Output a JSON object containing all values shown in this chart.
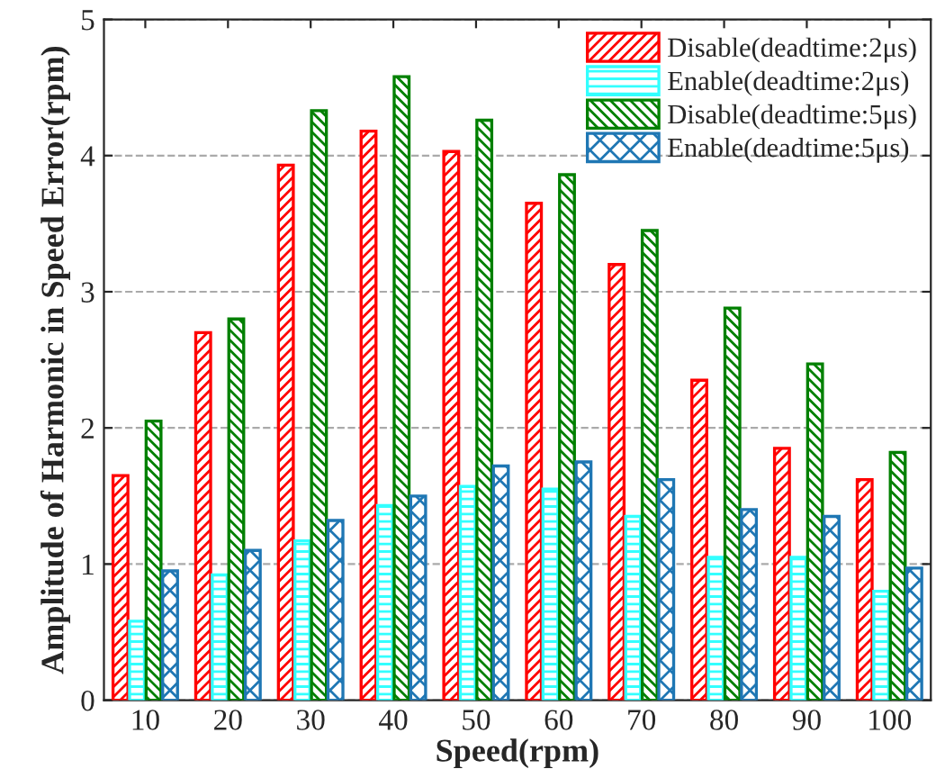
{
  "chart_data": {
    "type": "bar",
    "xlabel": "Speed(rpm)",
    "ylabel": "Amplitude of Harmonic in Speed Error(rpm)",
    "categories": [
      "10",
      "20",
      "30",
      "40",
      "50",
      "60",
      "70",
      "80",
      "90",
      "100"
    ],
    "series": [
      {
        "name": "Disable(deadtime:2μs)",
        "color": "#ff0000",
        "values": [
          1.65,
          2.7,
          3.93,
          4.18,
          4.03,
          3.65,
          3.2,
          2.35,
          1.85,
          1.62
        ]
      },
      {
        "name": "Enable(deadtime:2μs)",
        "color": "#33ffff",
        "values": [
          0.58,
          0.92,
          1.17,
          1.43,
          1.57,
          1.55,
          1.35,
          1.05,
          1.05,
          0.8
        ]
      },
      {
        "name": "Disable(deadtime:5μs)",
        "color": "#008000",
        "values": [
          2.05,
          2.8,
          4.33,
          4.58,
          4.26,
          3.86,
          3.45,
          2.88,
          2.47,
          1.82
        ]
      },
      {
        "name": "Enable(deadtime:5μs)",
        "color": "#1f77b4",
        "values": [
          0.95,
          1.1,
          1.32,
          1.5,
          1.72,
          1.75,
          1.62,
          1.4,
          1.35,
          0.97
        ]
      }
    ],
    "ylim": [
      0,
      5
    ],
    "yticks": [
      0,
      1,
      2,
      3,
      4,
      5
    ],
    "grid": "y",
    "legend": "top right"
  }
}
